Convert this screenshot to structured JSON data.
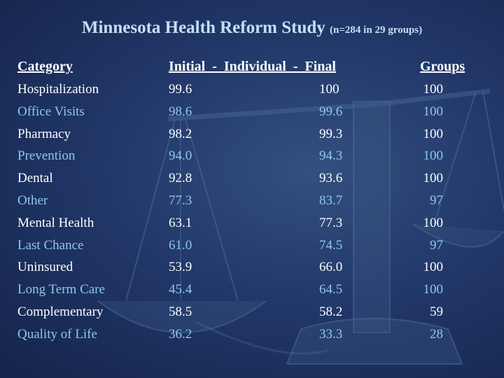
{
  "title": {
    "main": "Minnesota Health Reform Study",
    "sub": "(n=284 in 29 groups)"
  },
  "headers": {
    "category": "Category",
    "initial_final": "Initial  -  Individual  -  Final",
    "groups": "Groups"
  },
  "rows": [
    {
      "category": "Hospitalization",
      "initial": "99.6",
      "final": "100",
      "groups": "100"
    },
    {
      "category": "Office Visits",
      "initial": "98.6",
      "final": "99.6",
      "groups": "100"
    },
    {
      "category": "Pharmacy",
      "initial": "98.2",
      "final": "99.3",
      "groups": "100"
    },
    {
      "category": "Prevention",
      "initial": "94.0",
      "final": "94.3",
      "groups": "100"
    },
    {
      "category": "Dental",
      "initial": "92.8",
      "final": "93.6",
      "groups": "100"
    },
    {
      "category": "Other",
      "initial": "77.3",
      "final": "83.7",
      "groups": "97"
    },
    {
      "category": "Mental Health",
      "initial": "63.1",
      "final": "77.3",
      "groups": "100"
    },
    {
      "category": "Last Chance",
      "initial": "61.0",
      "final": "74.5",
      "groups": "97"
    },
    {
      "category": "Uninsured",
      "initial": "53.9",
      "final": "66.0",
      "groups": "100"
    },
    {
      "category": "Long Term Care",
      "initial": "45.4",
      "final": "64.5",
      "groups": "100"
    },
    {
      "category": "Complementary",
      "initial": "58.5",
      "final": "58.2",
      "groups": "59"
    },
    {
      "category": "Quality of Life",
      "initial": "36.2",
      "final": "33.3",
      "groups": "28"
    }
  ],
  "colors": {
    "background": "#22386a",
    "title": "#c2e0f4",
    "row_white": "#ffffff",
    "row_blue": "#8ec8ee"
  }
}
